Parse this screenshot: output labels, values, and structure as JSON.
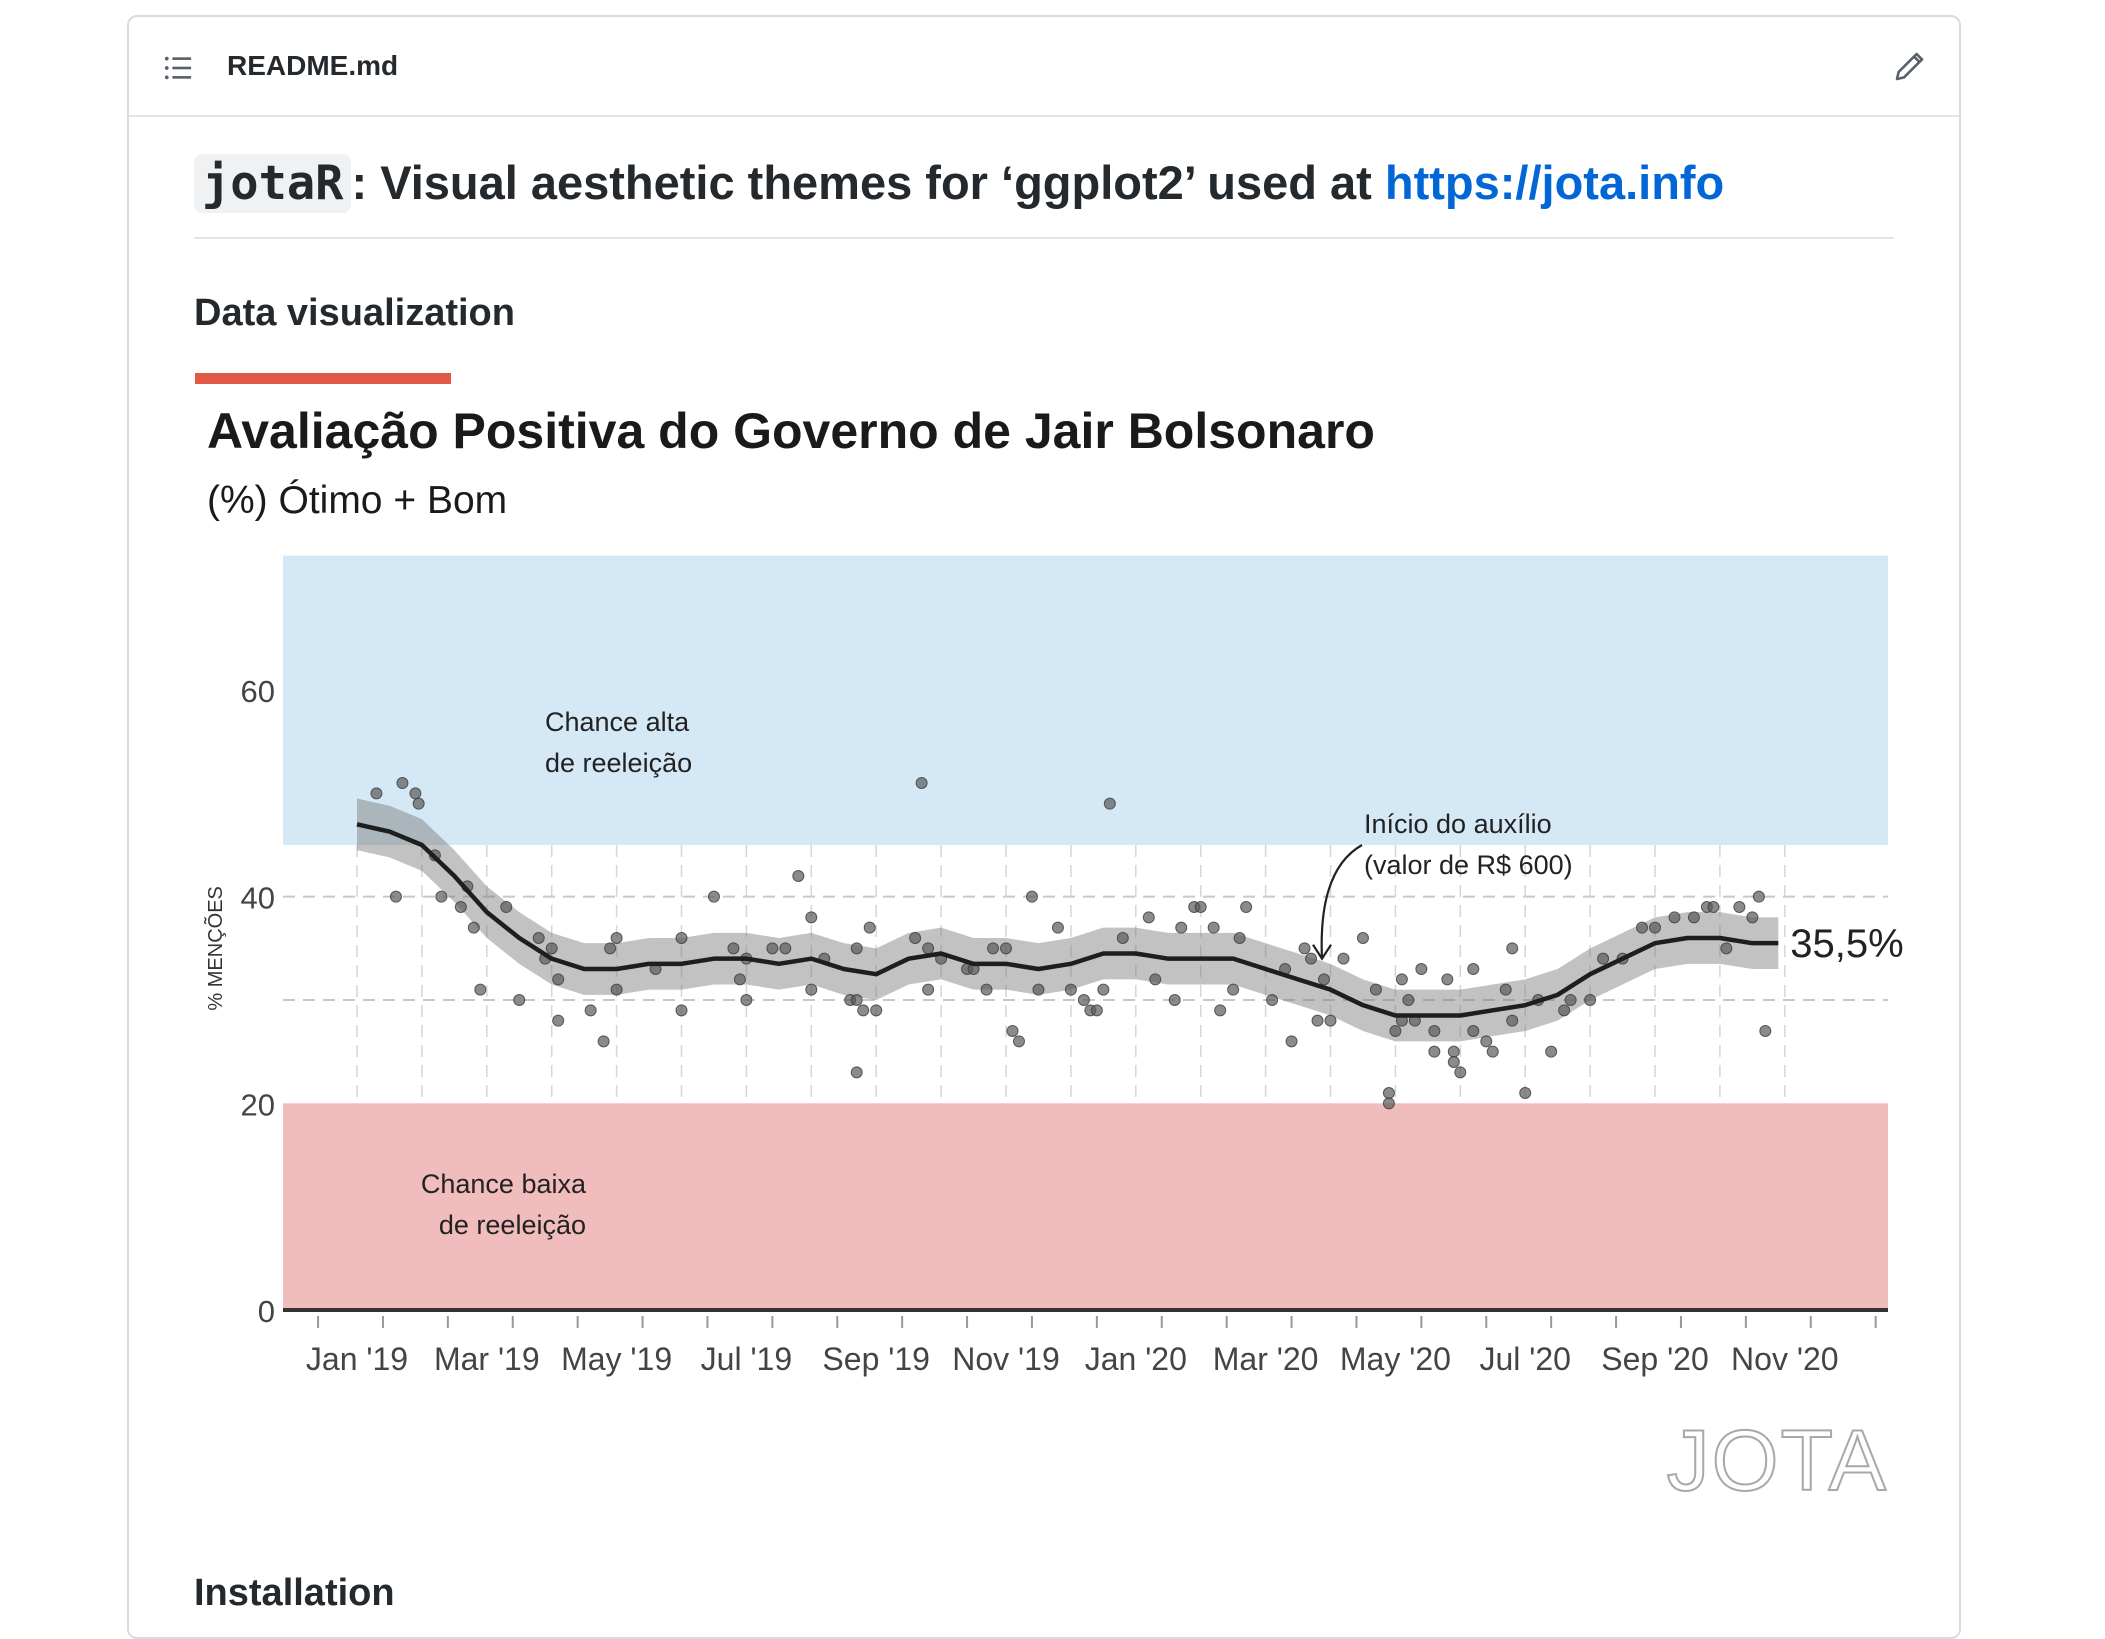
{
  "header": {
    "filename": "README.md",
    "toc_icon": "list-icon",
    "edit_icon": "pencil-icon"
  },
  "readme": {
    "h2_code": "jotaR",
    "h2_text": ": Visual aesthetic themes for ‘ggplot2’ used at ",
    "h2_link": "https://jota.info",
    "section_data_viz": "Data visualization",
    "section_installation": "Installation"
  },
  "colors": {
    "accent_bar": "#e05a47",
    "link": "#0366d6",
    "band_high": "#d4e9f5",
    "band_low": "#f0bcbc"
  },
  "chart_data": {
    "type": "scatter",
    "title": "Avaliação Positiva do Governo de Jair Bolsonaro",
    "subtitle": "(%) Ótimo + Bom",
    "ylabel": "% MENÇÕES",
    "xlabel": "",
    "ylim": [
      0,
      73
    ],
    "yticks": [
      0,
      20,
      40,
      60
    ],
    "xlim": [
      "2018-12",
      "2020-12"
    ],
    "xticks": [
      "Jan '19",
      "Mar '19",
      "May '19",
      "Jul '19",
      "Sep '19",
      "Nov '19",
      "Jan '20",
      "Mar '20",
      "May '20",
      "Jul '20",
      "Sep '20",
      "Nov '20"
    ],
    "bands": [
      {
        "from": 45,
        "to": 73,
        "label_line1": "Chance alta",
        "label_line2": "de reeleição"
      },
      {
        "from": 0,
        "to": 20,
        "label_line1": "Chance baixa",
        "label_line2": "de reeleição"
      }
    ],
    "annotation": {
      "line1": "Início do auxílio",
      "line2": "(valor de R$ 600)",
      "x_month": 14.0,
      "y": 34
    },
    "end_label": "35,5%",
    "logo": "JOTA",
    "grid": true,
    "points_month_value": [
      [
        0.3,
        50
      ],
      [
        0.6,
        40
      ],
      [
        0.7,
        51
      ],
      [
        0.9,
        50
      ],
      [
        0.95,
        49
      ],
      [
        1.2,
        44
      ],
      [
        1.3,
        40
      ],
      [
        1.6,
        39
      ],
      [
        1.7,
        41
      ],
      [
        1.8,
        37
      ],
      [
        1.9,
        31
      ],
      [
        2.3,
        39
      ],
      [
        2.5,
        30
      ],
      [
        2.8,
        36
      ],
      [
        2.9,
        34
      ],
      [
        3.0,
        35
      ],
      [
        3.1,
        32
      ],
      [
        3.1,
        28
      ],
      [
        3.6,
        29
      ],
      [
        3.8,
        26
      ],
      [
        3.9,
        35
      ],
      [
        4.0,
        31
      ],
      [
        4.0,
        36
      ],
      [
        4.6,
        33
      ],
      [
        5.0,
        36
      ],
      [
        5.0,
        29
      ],
      [
        5.5,
        40
      ],
      [
        5.8,
        35
      ],
      [
        5.9,
        32
      ],
      [
        6.0,
        34
      ],
      [
        6.0,
        30
      ],
      [
        6.4,
        35
      ],
      [
        6.6,
        35
      ],
      [
        6.8,
        42
      ],
      [
        7.0,
        31
      ],
      [
        7.0,
        38
      ],
      [
        7.2,
        34
      ],
      [
        7.6,
        30
      ],
      [
        7.7,
        30
      ],
      [
        7.7,
        35
      ],
      [
        7.7,
        23
      ],
      [
        7.8,
        29
      ],
      [
        7.9,
        37
      ],
      [
        8.0,
        29
      ],
      [
        8.6,
        36
      ],
      [
        8.7,
        51
      ],
      [
        8.8,
        31
      ],
      [
        8.8,
        35
      ],
      [
        9.0,
        34
      ],
      [
        9.4,
        33
      ],
      [
        9.5,
        33
      ],
      [
        9.7,
        31
      ],
      [
        9.8,
        35
      ],
      [
        10.0,
        35
      ],
      [
        10.1,
        27
      ],
      [
        10.2,
        26
      ],
      [
        10.4,
        40
      ],
      [
        10.5,
        31
      ],
      [
        10.8,
        37
      ],
      [
        11.0,
        31
      ],
      [
        11.2,
        30
      ],
      [
        11.3,
        29
      ],
      [
        11.4,
        29
      ],
      [
        11.5,
        31
      ],
      [
        11.6,
        49
      ],
      [
        11.8,
        36
      ],
      [
        12.2,
        38
      ],
      [
        12.3,
        32
      ],
      [
        12.6,
        30
      ],
      [
        12.7,
        37
      ],
      [
        12.9,
        39
      ],
      [
        13.0,
        39
      ],
      [
        13.2,
        37
      ],
      [
        13.3,
        29
      ],
      [
        13.5,
        31
      ],
      [
        13.6,
        36
      ],
      [
        13.7,
        39
      ],
      [
        14.1,
        30
      ],
      [
        14.3,
        33
      ],
      [
        14.4,
        26
      ],
      [
        14.6,
        35
      ],
      [
        14.7,
        34
      ],
      [
        14.8,
        28
      ],
      [
        14.9,
        32
      ],
      [
        15.0,
        28
      ],
      [
        15.2,
        34
      ],
      [
        15.5,
        36
      ],
      [
        15.7,
        31
      ],
      [
        15.9,
        20
      ],
      [
        15.9,
        21
      ],
      [
        16.0,
        27
      ],
      [
        16.1,
        28
      ],
      [
        16.1,
        32
      ],
      [
        16.2,
        30
      ],
      [
        16.3,
        28
      ],
      [
        16.4,
        33
      ],
      [
        16.6,
        27
      ],
      [
        16.6,
        25
      ],
      [
        16.8,
        32
      ],
      [
        16.9,
        25
      ],
      [
        16.9,
        24
      ],
      [
        17.0,
        23
      ],
      [
        17.2,
        33
      ],
      [
        17.2,
        27
      ],
      [
        17.4,
        26
      ],
      [
        17.5,
        25
      ],
      [
        17.7,
        31
      ],
      [
        17.8,
        28
      ],
      [
        17.8,
        35
      ],
      [
        18.0,
        21
      ],
      [
        18.2,
        30
      ],
      [
        18.4,
        25
      ],
      [
        18.6,
        29
      ],
      [
        18.7,
        30
      ],
      [
        19.0,
        30
      ],
      [
        19.2,
        34
      ],
      [
        19.5,
        34
      ],
      [
        19.8,
        37
      ],
      [
        20.0,
        37
      ],
      [
        20.3,
        38
      ],
      [
        20.6,
        38
      ],
      [
        20.8,
        39
      ],
      [
        20.9,
        39
      ],
      [
        21.1,
        35
      ],
      [
        21.3,
        39
      ],
      [
        21.5,
        38
      ],
      [
        21.6,
        40
      ],
      [
        21.7,
        27
      ]
    ],
    "trend_month_value": [
      [
        0.0,
        47
      ],
      [
        0.5,
        46.3
      ],
      [
        1.0,
        45
      ],
      [
        1.5,
        42
      ],
      [
        2.0,
        38.5
      ],
      [
        2.5,
        36
      ],
      [
        3.0,
        34
      ],
      [
        3.5,
        33
      ],
      [
        4.0,
        33
      ],
      [
        4.5,
        33.5
      ],
      [
        5.0,
        33.5
      ],
      [
        5.5,
        34
      ],
      [
        6.0,
        34
      ],
      [
        6.5,
        33.5
      ],
      [
        7.0,
        34
      ],
      [
        7.5,
        33
      ],
      [
        8.0,
        32.5
      ],
      [
        8.5,
        34
      ],
      [
        9.0,
        34.5
      ],
      [
        9.5,
        33.5
      ],
      [
        10.0,
        33.5
      ],
      [
        10.5,
        33
      ],
      [
        11.0,
        33.5
      ],
      [
        11.5,
        34.5
      ],
      [
        12.0,
        34.5
      ],
      [
        12.5,
        34
      ],
      [
        13.0,
        34
      ],
      [
        13.5,
        34
      ],
      [
        14.0,
        33
      ],
      [
        14.5,
        32
      ],
      [
        15.0,
        31
      ],
      [
        15.5,
        29.5
      ],
      [
        16.0,
        28.5
      ],
      [
        16.5,
        28.5
      ],
      [
        17.0,
        28.5
      ],
      [
        17.5,
        29
      ],
      [
        18.0,
        29.5
      ],
      [
        18.5,
        30.5
      ],
      [
        19.0,
        32.5
      ],
      [
        19.5,
        34
      ],
      [
        20.0,
        35.5
      ],
      [
        20.5,
        36
      ],
      [
        21.0,
        36
      ],
      [
        21.5,
        35.5
      ],
      [
        21.9,
        35.5
      ]
    ],
    "ribbon_halfwidth": 2.5
  }
}
